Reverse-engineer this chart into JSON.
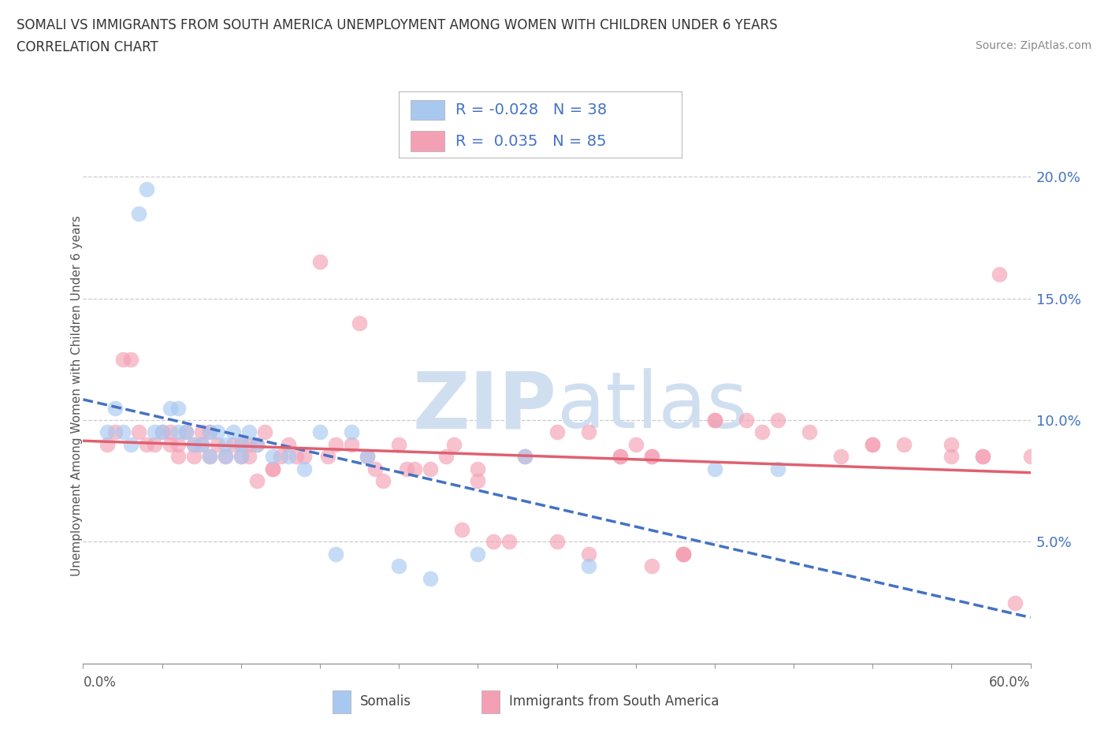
{
  "title_line1": "SOMALI VS IMMIGRANTS FROM SOUTH AMERICA UNEMPLOYMENT AMONG WOMEN WITH CHILDREN UNDER 6 YEARS",
  "title_line2": "CORRELATION CHART",
  "source": "Source: ZipAtlas.com",
  "ylabel": "Unemployment Among Women with Children Under 6 years",
  "legend_label1": "Somalis",
  "legend_label2": "Immigrants from South America",
  "r1": -0.028,
  "n1": 38,
  "r2": 0.035,
  "n2": 85,
  "somali_color": "#a8c8f0",
  "somali_edge_color": "#7aafd4",
  "south_america_color": "#f4a0b4",
  "south_america_edge_color": "#e87090",
  "somali_line_color": "#4472c4",
  "south_america_line_color": "#e06070",
  "background_color": "#ffffff",
  "watermark_color": "#d0dff0",
  "xmin": 0.0,
  "xmax": 60.0,
  "ymin": 0.0,
  "ymax": 22.0,
  "ytick_vals": [
    5.0,
    10.0,
    15.0,
    20.0
  ],
  "somali_x": [
    1.5,
    2.0,
    2.5,
    3.0,
    3.5,
    4.0,
    4.5,
    5.0,
    5.5,
    6.0,
    6.0,
    6.5,
    7.0,
    7.5,
    8.0,
    8.0,
    8.5,
    9.0,
    9.0,
    9.5,
    10.0,
    10.0,
    10.5,
    11.0,
    12.0,
    13.0,
    14.0,
    15.0,
    16.0,
    17.0,
    18.0,
    20.0,
    22.0,
    25.0,
    28.0,
    32.0,
    40.0,
    44.0
  ],
  "somali_y": [
    9.5,
    10.5,
    9.5,
    9.0,
    18.5,
    19.5,
    9.5,
    9.5,
    10.5,
    10.5,
    9.5,
    9.5,
    9.0,
    9.0,
    8.5,
    9.5,
    9.5,
    9.0,
    8.5,
    9.5,
    9.0,
    8.5,
    9.5,
    9.0,
    8.5,
    8.5,
    8.0,
    9.5,
    4.5,
    9.5,
    8.5,
    4.0,
    3.5,
    4.5,
    8.5,
    4.0,
    8.0,
    8.0
  ],
  "sa_x": [
    1.5,
    2.0,
    2.5,
    3.0,
    3.5,
    4.0,
    4.5,
    5.0,
    5.5,
    5.5,
    6.0,
    6.0,
    6.5,
    7.0,
    7.0,
    7.5,
    7.5,
    8.0,
    8.0,
    8.5,
    9.0,
    9.5,
    10.0,
    10.0,
    10.5,
    10.5,
    11.0,
    11.0,
    11.5,
    12.0,
    12.5,
    13.0,
    13.5,
    14.0,
    15.0,
    15.5,
    16.0,
    17.0,
    18.0,
    18.5,
    19.0,
    20.0,
    20.5,
    22.0,
    23.0,
    24.0,
    25.0,
    26.0,
    27.0,
    28.0,
    30.0,
    32.0,
    34.0,
    36.0,
    38.0,
    40.0,
    42.0,
    44.0,
    46.0,
    48.0,
    50.0,
    52.0,
    55.0,
    57.0,
    58.0,
    12.0,
    17.5,
    21.0,
    23.5,
    35.0,
    36.0,
    38.0,
    40.0,
    43.0,
    50.0,
    55.0,
    57.0,
    59.0,
    60.0,
    25.0,
    30.0,
    32.0,
    34.0,
    36.0,
    38.0
  ],
  "sa_y": [
    9.0,
    9.5,
    12.5,
    12.5,
    9.5,
    9.0,
    9.0,
    9.5,
    9.5,
    9.0,
    9.0,
    8.5,
    9.5,
    9.0,
    8.5,
    9.5,
    9.0,
    9.5,
    8.5,
    9.0,
    8.5,
    9.0,
    9.0,
    8.5,
    9.0,
    8.5,
    9.0,
    7.5,
    9.5,
    8.0,
    8.5,
    9.0,
    8.5,
    8.5,
    16.5,
    8.5,
    9.0,
    9.0,
    8.5,
    8.0,
    7.5,
    9.0,
    8.0,
    8.0,
    8.5,
    5.5,
    8.0,
    5.0,
    5.0,
    8.5,
    9.5,
    9.5,
    8.5,
    8.5,
    4.5,
    10.0,
    10.0,
    10.0,
    9.5,
    8.5,
    9.0,
    9.0,
    8.5,
    8.5,
    16.0,
    8.0,
    14.0,
    8.0,
    9.0,
    9.0,
    8.5,
    4.5,
    10.0,
    9.5,
    9.0,
    9.0,
    8.5,
    2.5,
    8.5,
    7.5,
    5.0,
    4.5,
    8.5,
    4.0,
    4.5
  ]
}
